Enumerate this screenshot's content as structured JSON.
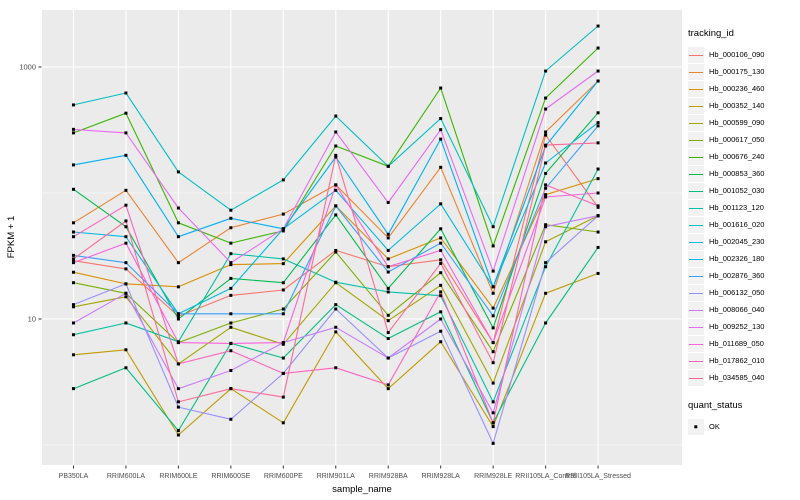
{
  "colors": {
    "panel_background": "#EBEBEB",
    "grid": "#FFFFFF",
    "tick_text": "#4D4D4D",
    "axis_title": "#000000",
    "point": "#000000",
    "legend_key_background": "#F2F2F2"
  },
  "chart_data": {
    "type": "line",
    "title": "",
    "xlabel": "sample_name",
    "ylabel": "FPKM + 1",
    "y_scale": "log10",
    "ylim": [
      0.7,
      2900
    ],
    "y_ticks": [
      10,
      1000
    ],
    "y_tick_labels": [
      "10",
      "1000"
    ],
    "y_minor": [
      1,
      100
    ],
    "grid": "on",
    "legend_position": "right",
    "legend_title": "tracking_id",
    "legend2_title": "quant_status",
    "legend2_items": [
      {
        "label": "OK"
      }
    ],
    "point_shape": "square",
    "categories": [
      "PB350LA",
      "RRIM600LA",
      "RRIM600LE",
      "RRIM600SE",
      "RRIM600PE",
      "RRIM901LA",
      "RRIM928BA",
      "RRIM928LA",
      "RRIM928LE",
      "RRII105LA_Control",
      "RRII105LA_Stressed"
    ],
    "series": [
      {
        "name": "Hb_000106_090",
        "color": "#F8766D",
        "values": [
          29,
          25,
          10.5,
          15.4,
          17,
          35,
          26,
          29.5,
          6.5,
          288,
          77
        ]
      },
      {
        "name": "Hb_000175_130",
        "color": "#EA8331",
        "values": [
          58,
          105,
          28,
          53,
          68,
          116,
          44,
          160,
          16,
          305,
          774
        ]
      },
      {
        "name": "Hb_000236_460",
        "color": "#D89000",
        "values": [
          23.5,
          19,
          18,
          27,
          27.5,
          79,
          30,
          44,
          12.2,
          97,
          130
        ]
      },
      {
        "name": "Hb_000352_140",
        "color": "#C09B00",
        "values": [
          5.2,
          5.7,
          1.2,
          2.8,
          1.5,
          7.9,
          2.8,
          6.6,
          1.4,
          16,
          23
        ]
      },
      {
        "name": "Hb_000599_090",
        "color": "#A3A500",
        "values": [
          12.5,
          15,
          4.4,
          8.6,
          6.3,
          19.4,
          9.7,
          18.5,
          3.1,
          41,
          66
        ]
      },
      {
        "name": "Hb_000617_050",
        "color": "#7CAE00",
        "values": [
          19.4,
          16,
          6.5,
          9.3,
          12,
          34,
          10.7,
          23.3,
          5.5,
          56,
          49
        ]
      },
      {
        "name": "Hb_000676_240",
        "color": "#39B600",
        "values": [
          300,
          430,
          58,
          40,
          50,
          236,
          163,
          681,
          38,
          567,
          1414
        ]
      },
      {
        "name": "Hb_000853_360",
        "color": "#00BB4E",
        "values": [
          107,
          54,
          10,
          21,
          19.4,
          67,
          17.5,
          52,
          8.5,
          143,
          433
        ]
      },
      {
        "name": "Hb_001052_030",
        "color": "#00BF7D",
        "values": [
          2.8,
          4.1,
          1.3,
          6.4,
          4.9,
          13,
          7.0,
          11.4,
          1.5,
          9.3,
          37
        ]
      },
      {
        "name": "Hb_001123_120",
        "color": "#00C1A3",
        "values": [
          7.5,
          9.3,
          6.6,
          33,
          30,
          19.6,
          16.4,
          15.3,
          2.2,
          26,
          155
        ]
      },
      {
        "name": "Hb_001616_020",
        "color": "#00BFC4",
        "values": [
          500,
          622,
          147,
          73,
          127,
          408,
          163,
          390,
          54,
          929,
          2114
        ]
      },
      {
        "name": "Hb_002045_230",
        "color": "#00BAE0",
        "values": [
          49,
          45,
          11,
          17.5,
          52,
          105,
          35,
          82,
          18,
          173,
          362
        ]
      },
      {
        "name": "Hb_002326_180",
        "color": "#00B0F6",
        "values": [
          167,
          199,
          45,
          63,
          52,
          193,
          47,
          268,
          18,
          236,
          774
        ]
      },
      {
        "name": "Hb_002876_360",
        "color": "#35A2FF",
        "values": [
          32,
          28,
          11,
          11,
          11,
          79,
          23.6,
          40,
          10.6,
          109,
          341
        ]
      },
      {
        "name": "Hb_006132_050",
        "color": "#9590FF",
        "values": [
          13,
          19,
          2.0,
          1.6,
          3.7,
          12,
          4.9,
          8,
          1.03,
          28,
          66
        ]
      },
      {
        "name": "Hb_008066_040",
        "color": "#C77CFF",
        "values": [
          9.3,
          16,
          2.8,
          3.9,
          6.5,
          8.6,
          4.9,
          10,
          1.8,
          54,
          66
        ]
      },
      {
        "name": "Hb_009252_130",
        "color": "#E76BF3",
        "values": [
          320,
          300,
          76,
          28,
          52,
          305,
          84,
          318,
          24,
          464,
          929
        ]
      },
      {
        "name": "Hb_011689_050",
        "color": "#FA62DB",
        "values": [
          28,
          40,
          6.5,
          6.4,
          6.5,
          116,
          26,
          35,
          6.5,
          93,
          100
        ]
      },
      {
        "name": "Hb_017862_010",
        "color": "#FF62BC",
        "values": [
          45,
          80,
          4.4,
          5.6,
          3.7,
          4.1,
          3.0,
          16.4,
          1.5,
          116,
          79
        ]
      },
      {
        "name": "Hb_034585_040",
        "color": "#FF6A98",
        "values": [
          30,
          60,
          2.2,
          2.8,
          2.4,
          199,
          7.8,
          27.6,
          4.5,
          240,
          250
        ]
      }
    ]
  }
}
